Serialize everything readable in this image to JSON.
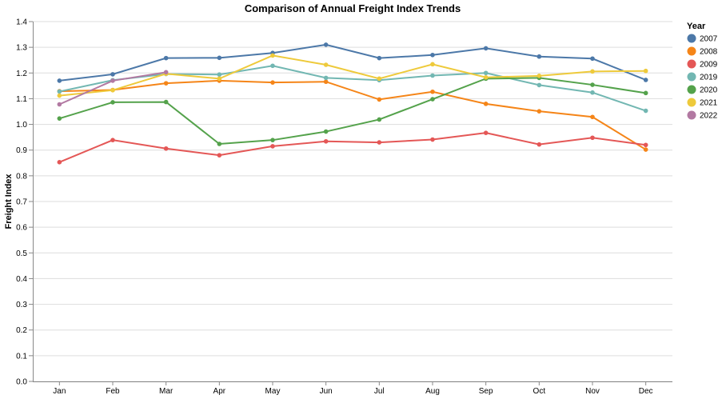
{
  "chart_data": {
    "type": "line",
    "title": "Comparison of Annual Freight Index Trends",
    "xlabel": "",
    "ylabel": "Freight Index",
    "ylim": [
      0,
      1.4
    ],
    "yticks": [
      "0.0",
      "0.1",
      "0.2",
      "0.3",
      "0.4",
      "0.5",
      "0.6",
      "0.7",
      "0.8",
      "0.9",
      "1.0",
      "1.1",
      "1.2",
      "1.3",
      "1.4"
    ],
    "grid": true,
    "legend": {
      "title": "Year",
      "placement": "right"
    },
    "categories": [
      "Jan",
      "Feb",
      "Mar",
      "Apr",
      "May",
      "Jun",
      "Jul",
      "Aug",
      "Sep",
      "Oct",
      "Nov",
      "Dec"
    ],
    "series": [
      {
        "name": "2007",
        "color": "#4c78a8",
        "values": [
          1.17,
          1.195,
          1.258,
          1.259,
          1.278,
          1.31,
          1.258,
          1.27,
          1.296,
          1.264,
          1.256,
          1.173
        ]
      },
      {
        "name": "2008",
        "color": "#f58518",
        "values": [
          1.129,
          1.134,
          1.16,
          1.17,
          1.163,
          1.166,
          1.097,
          1.127,
          1.08,
          1.051,
          1.029,
          0.902
        ]
      },
      {
        "name": "2009",
        "color": "#e45756",
        "values": [
          0.853,
          0.939,
          0.906,
          0.88,
          0.915,
          0.934,
          0.93,
          0.941,
          0.967,
          0.922,
          0.948,
          0.92
        ]
      },
      {
        "name": "2019",
        "color": "#72b7b2",
        "values": [
          1.128,
          1.172,
          1.196,
          1.194,
          1.228,
          1.181,
          1.172,
          1.19,
          1.2,
          1.153,
          1.124,
          1.053
        ]
      },
      {
        "name": "2020",
        "color": "#54a24b",
        "values": [
          1.023,
          1.086,
          1.087,
          0.924,
          0.939,
          0.972,
          1.019,
          1.098,
          1.178,
          1.181,
          1.154,
          1.122
        ]
      },
      {
        "name": "2021",
        "color": "#eeca3b",
        "values": [
          1.112,
          1.133,
          1.197,
          1.178,
          1.268,
          1.232,
          1.178,
          1.234,
          1.183,
          1.189,
          1.206,
          1.208
        ]
      },
      {
        "name": "2022",
        "color": "#b279a2",
        "values": [
          1.078,
          1.17,
          1.203,
          null,
          null,
          null,
          null,
          null,
          null,
          null,
          null,
          null
        ]
      }
    ]
  }
}
